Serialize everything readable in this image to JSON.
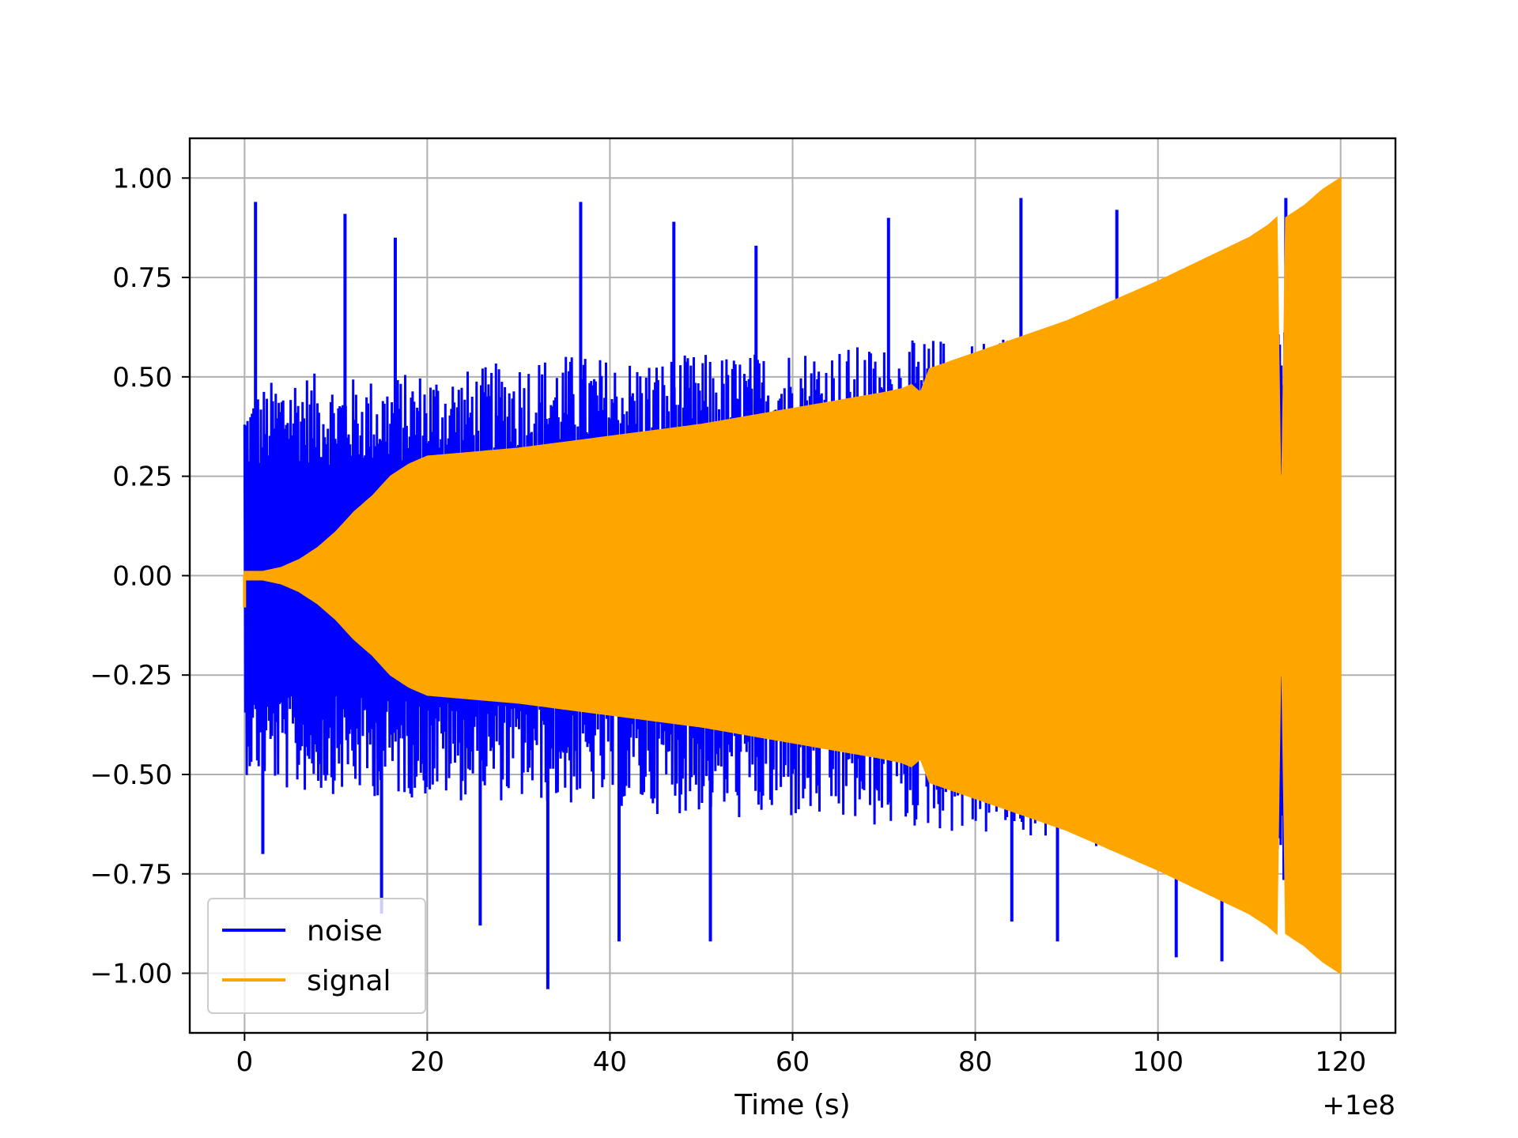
{
  "chart_data": {
    "type": "line",
    "title": "",
    "xlabel": "Time (s)",
    "ylabel": "",
    "x_offset_label": "+1e8",
    "xlim": [
      -6,
      126
    ],
    "ylim": [
      -1.15,
      1.1
    ],
    "x_ticks": [
      0,
      20,
      40,
      60,
      80,
      100,
      120
    ],
    "x_tick_labels": [
      "0",
      "20",
      "40",
      "60",
      "80",
      "100",
      "120"
    ],
    "y_ticks": [
      1.0,
      0.75,
      0.5,
      0.25,
      0.0,
      -0.25,
      -0.5,
      -0.75,
      -1.0
    ],
    "y_tick_labels": [
      "1.00",
      "0.75",
      "0.50",
      "0.25",
      "0.00",
      "−0.25",
      "−0.50",
      "−0.75",
      "−1.00"
    ],
    "grid": true,
    "legend_position": "lower-left",
    "series": [
      {
        "name": "noise",
        "color": "#0000ff",
        "style": "dense oscillation",
        "x_range": [
          0,
          114
        ],
        "upper_envelope": {
          "x": [
            0,
            5,
            10,
            15,
            20,
            25,
            30,
            35,
            40,
            45,
            50,
            55,
            60,
            65,
            70,
            75,
            80,
            85,
            90,
            95,
            100,
            105,
            110,
            114
          ],
          "y": [
            0.45,
            0.52,
            0.5,
            0.5,
            0.52,
            0.52,
            0.55,
            0.56,
            0.55,
            0.55,
            0.56,
            0.56,
            0.58,
            0.58,
            0.58,
            0.6,
            0.6,
            0.62,
            0.62,
            0.62,
            0.64,
            0.66,
            0.68,
            0.68
          ]
        },
        "lower_envelope": {
          "x": [
            0,
            5,
            10,
            15,
            20,
            25,
            30,
            35,
            40,
            45,
            50,
            55,
            60,
            65,
            70,
            75,
            80,
            85,
            90,
            95,
            100,
            105,
            110,
            114
          ],
          "y": [
            -0.5,
            -0.55,
            -0.55,
            -0.56,
            -0.56,
            -0.57,
            -0.57,
            -0.58,
            -0.58,
            -0.6,
            -0.6,
            -0.62,
            -0.62,
            -0.63,
            -0.64,
            -0.64,
            -0.66,
            -0.66,
            -0.68,
            -0.7,
            -0.72,
            -0.75,
            -0.78,
            -0.8
          ]
        },
        "peaks": [
          {
            "x": 1.2,
            "y": 0.94
          },
          {
            "x": 11,
            "y": 0.91
          },
          {
            "x": 16.5,
            "y": 0.85
          },
          {
            "x": 36.8,
            "y": 0.94
          },
          {
            "x": 47,
            "y": 0.89
          },
          {
            "x": 56,
            "y": 0.83
          },
          {
            "x": 70.5,
            "y": 0.9
          },
          {
            "x": 85,
            "y": 0.95
          },
          {
            "x": 95.5,
            "y": 0.92
          },
          {
            "x": 114,
            "y": 0.95
          },
          {
            "x": 33.2,
            "y": -1.04
          },
          {
            "x": 25.8,
            "y": -0.88
          },
          {
            "x": 41,
            "y": -0.92
          },
          {
            "x": 51,
            "y": -0.92
          },
          {
            "x": 84,
            "y": -0.87
          },
          {
            "x": 89,
            "y": -0.92
          },
          {
            "x": 102,
            "y": -0.96
          },
          {
            "x": 107,
            "y": -0.97
          },
          {
            "x": 15,
            "y": -0.85
          },
          {
            "x": 2,
            "y": -0.7
          }
        ]
      },
      {
        "name": "signal",
        "color": "#ffa500",
        "style": "dense oscillation",
        "x_range": [
          0,
          120
        ],
        "envelope": {
          "x": [
            0,
            2,
            4,
            6,
            8,
            10,
            12,
            14,
            16,
            18,
            20,
            30,
            40,
            50,
            60,
            70,
            72,
            73,
            74,
            75,
            80,
            90,
            100,
            110,
            112,
            113,
            113.5,
            114,
            116,
            118,
            120
          ],
          "y": [
            0.01,
            0.01,
            0.02,
            0.04,
            0.07,
            0.11,
            0.16,
            0.2,
            0.25,
            0.28,
            0.3,
            0.32,
            0.35,
            0.38,
            0.42,
            0.46,
            0.47,
            0.48,
            0.46,
            0.52,
            0.56,
            0.64,
            0.74,
            0.85,
            0.88,
            0.9,
            0.09,
            0.9,
            0.93,
            0.97,
            1.0
          ]
        },
        "initial_dip": {
          "x": 0,
          "y": -0.08
        }
      }
    ]
  },
  "legend": {
    "items": [
      {
        "label": "noise",
        "color": "#0000ff"
      },
      {
        "label": "signal",
        "color": "#ffa500"
      }
    ]
  }
}
